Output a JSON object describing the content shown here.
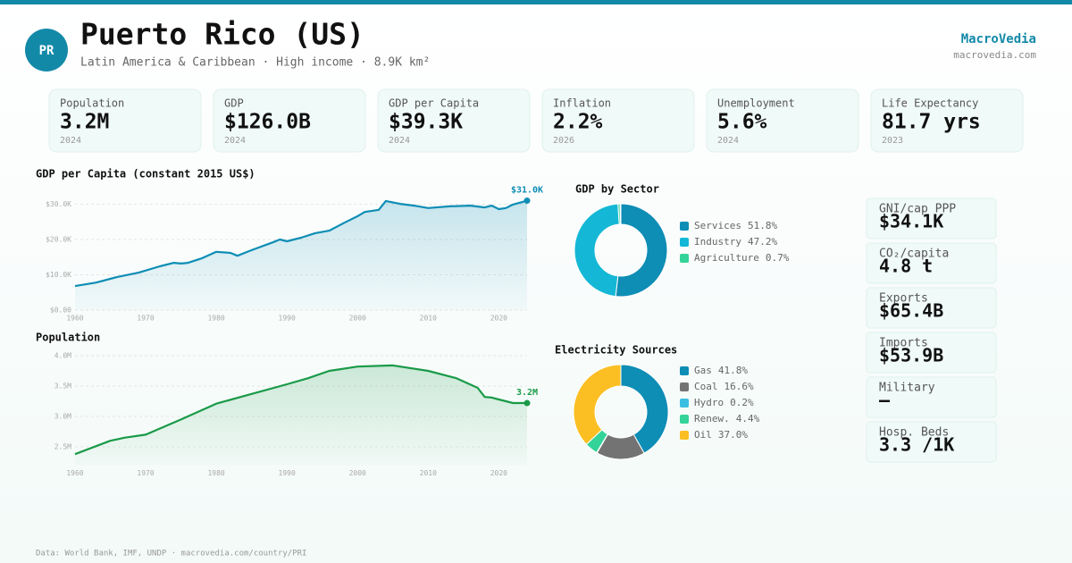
{
  "header": {
    "badge": "PR",
    "title": "Puerto Rico (US)",
    "subtitle": "Latin America & Caribbean · High income · 8.9K km²",
    "brand": "MacroVedia",
    "brand_url": "macrovedia.com"
  },
  "kpis": [
    {
      "label": "Population",
      "value": "3.2M",
      "year": "2024"
    },
    {
      "label": "GDP",
      "value": "$126.0B",
      "year": "2024"
    },
    {
      "label": "GDP per Capita",
      "value": "$39.3K",
      "year": "2024"
    },
    {
      "label": "Inflation",
      "value": "2.2%",
      "year": "2026"
    },
    {
      "label": "Unemployment",
      "value": "5.6%",
      "year": "2024"
    },
    {
      "label": "Life Expectancy",
      "value": "81.7 yrs",
      "year": "2023"
    }
  ],
  "chart_data": [
    {
      "type": "line",
      "title": "GDP per Capita (constant 2015 US$)",
      "x": [
        1960,
        1963,
        1966,
        1969,
        1972,
        1974,
        1975,
        1976,
        1978,
        1980,
        1982,
        1983,
        1985,
        1988,
        1989,
        1990,
        1992,
        1994,
        1996,
        1998,
        2000,
        2001,
        2003,
        2004,
        2006,
        2008,
        2010,
        2013,
        2016,
        2018,
        2019,
        2020,
        2021,
        2022,
        2024
      ],
      "values": [
        6800,
        7800,
        9400,
        10600,
        12400,
        13400,
        13200,
        13400,
        14700,
        16500,
        16200,
        15400,
        17000,
        19200,
        20000,
        19500,
        20500,
        21800,
        22500,
        24600,
        26600,
        27800,
        28400,
        30900,
        30100,
        29600,
        28900,
        29400,
        29600,
        29100,
        29600,
        28600,
        28900,
        29900,
        31000
      ],
      "color": "#0e8db5",
      "xlim": [
        1960,
        2024
      ],
      "xticks": [
        1960,
        1970,
        1980,
        1990,
        2000,
        2010,
        2020
      ],
      "ylim": [
        0,
        32000
      ],
      "yticks": [
        {
          "value": 0,
          "label": "$0.00"
        },
        {
          "value": 10000,
          "label": "$10.0K"
        },
        {
          "value": 20000,
          "label": "$20.0K"
        },
        {
          "value": 30000,
          "label": "$30.0K"
        }
      ],
      "end_label": "$31.0K",
      "grid": true
    },
    {
      "type": "line",
      "title": "Population",
      "x": [
        1960,
        1965,
        1967,
        1970,
        1975,
        1980,
        1985,
        1990,
        1993,
        1996,
        2000,
        2005,
        2010,
        2014,
        2017,
        2018,
        2019,
        2020,
        2022,
        2024
      ],
      "values": [
        2.38,
        2.6,
        2.65,
        2.7,
        2.95,
        3.21,
        3.37,
        3.53,
        3.63,
        3.75,
        3.82,
        3.84,
        3.75,
        3.63,
        3.47,
        3.32,
        3.31,
        3.28,
        3.22,
        3.22
      ],
      "color": "#1a9a48",
      "xlim": [
        1960,
        2024
      ],
      "xticks": [
        1960,
        1970,
        1980,
        1990,
        2000,
        2010,
        2020
      ],
      "ylim": [
        2.2,
        4.0
      ],
      "yticks": [
        {
          "value": 2.5,
          "label": "2.5M"
        },
        {
          "value": 3.0,
          "label": "3.0M"
        },
        {
          "value": 3.5,
          "label": "3.5M"
        },
        {
          "value": 4.0,
          "label": "4.0M"
        }
      ],
      "end_label": "3.2M",
      "grid": true
    },
    {
      "type": "donut",
      "title": "GDP by Sector",
      "categories": [
        "Services",
        "Industry",
        "Agriculture"
      ],
      "values": [
        51.8,
        47.2,
        0.7
      ],
      "value_labels": [
        "51.8%",
        "47.2%",
        "0.7%"
      ],
      "colors": [
        "#0e8db5",
        "#14b8d6",
        "#34d399"
      ]
    },
    {
      "type": "donut",
      "title": "Electricity Sources",
      "categories": [
        "Gas",
        "Coal",
        "Hydro",
        "Renew.",
        "Oil"
      ],
      "values": [
        41.8,
        16.6,
        0.2,
        4.4,
        37.0
      ],
      "value_labels": [
        "41.8%",
        "16.6%",
        "0.2%",
        "4.4%",
        "37.0%"
      ],
      "colors": [
        "#0e8db5",
        "#737373",
        "#3bbfe0",
        "#34d399",
        "#fbbf24"
      ]
    }
  ],
  "side_stats": [
    {
      "label": "GNI/cap PPP",
      "value": "$34.1K"
    },
    {
      "label": "CO₂/capita",
      "value": "4.8 t"
    },
    {
      "label": "Exports",
      "value": "$65.4B"
    },
    {
      "label": "Imports",
      "value": "$53.9B"
    },
    {
      "label": "Military",
      "value": "—"
    },
    {
      "label": "Hosp. Beds",
      "value": "3.3 /1K"
    }
  ],
  "footer": "Data: World Bank, IMF, UNDP · macrovedia.com/country/PRI"
}
